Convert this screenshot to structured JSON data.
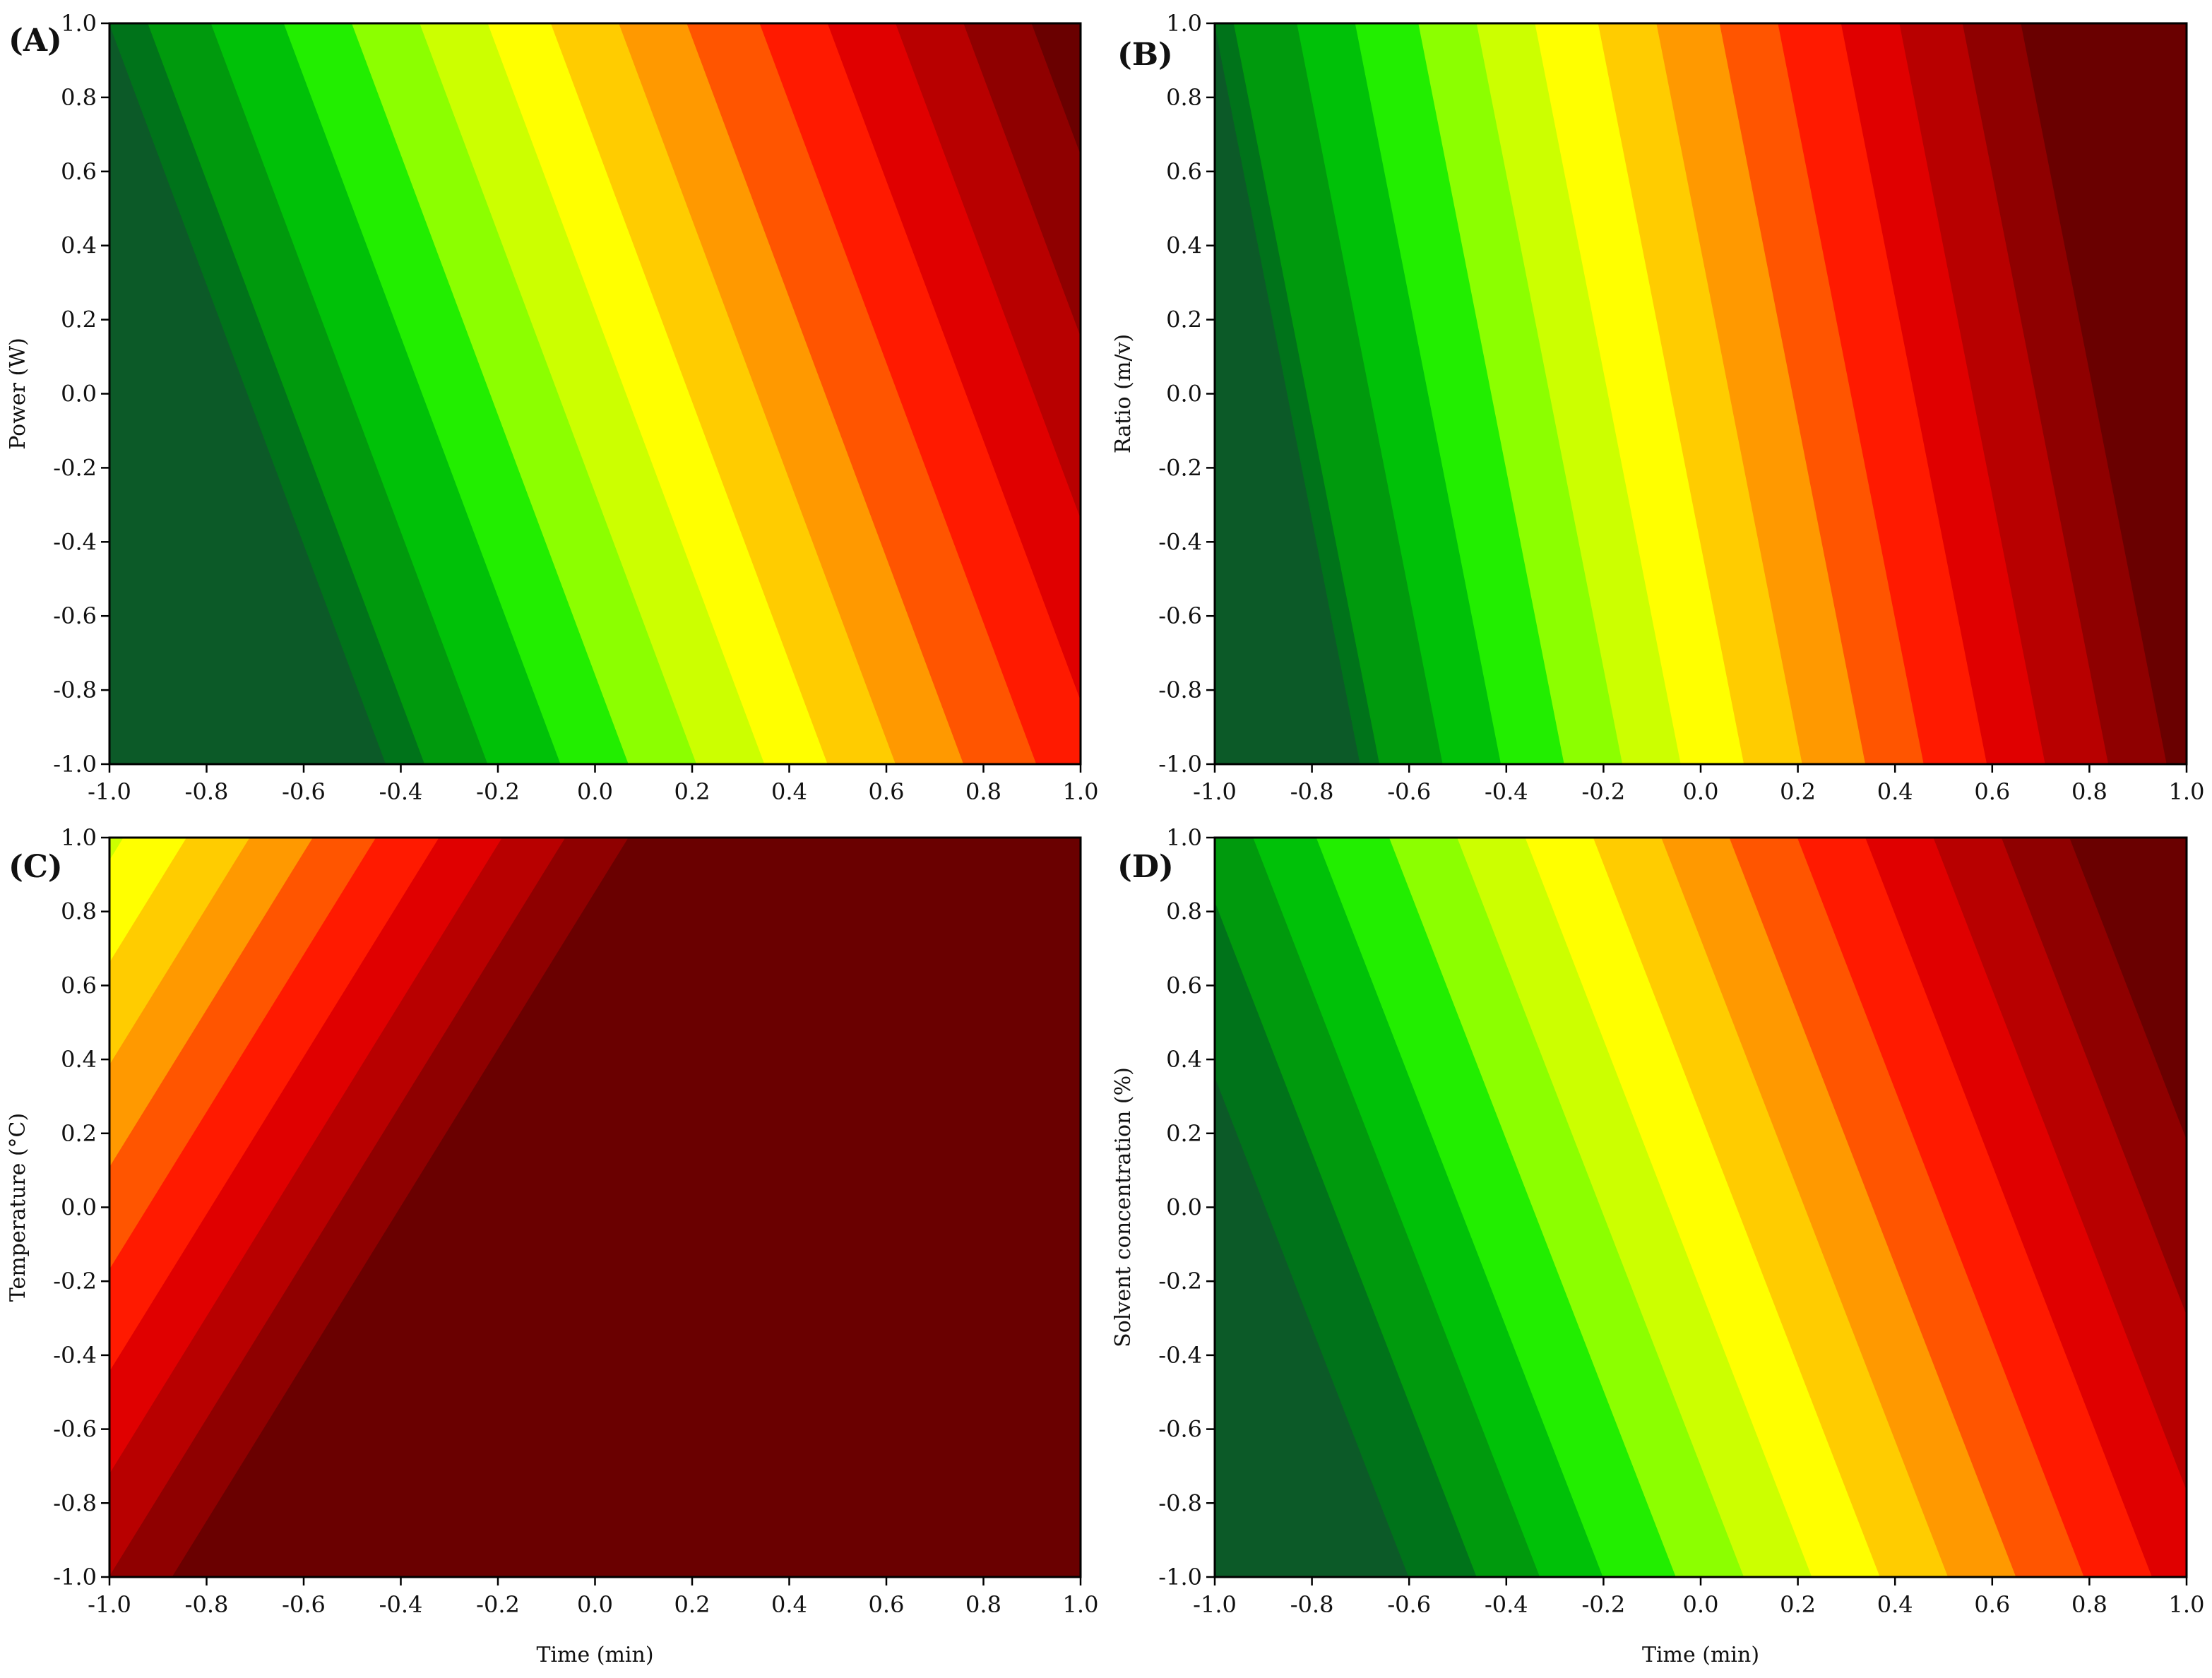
{
  "chart_data": [
    {
      "type": "contour",
      "panel_label": "(A)",
      "xlabel": "",
      "ylabel": "Power (W)",
      "xlim": [
        -1.0,
        1.0
      ],
      "ylim": [
        -1.0,
        1.0
      ],
      "x_ticks": [
        "-1.0",
        "-0.8",
        "-0.6",
        "-0.4",
        "-0.2",
        "0.0",
        "0.2",
        "0.4",
        "0.6",
        "0.8",
        "1.0"
      ],
      "y_ticks": [
        "1.0",
        "0.8",
        "0.6",
        "0.4",
        "0.2",
        "0.0",
        "-0.2",
        "-0.4",
        "-0.6",
        "-0.8",
        "-1.0"
      ],
      "levels": 15,
      "contour_boundaries_at_top": [
        -1.0,
        -0.92,
        -0.79,
        -0.64,
        -0.5,
        -0.36,
        -0.22,
        -0.09,
        0.05,
        0.19,
        0.34,
        0.48,
        0.62,
        0.76,
        0.9
      ],
      "x_shift_bottom_minus_top": 0.57,
      "grid": false,
      "legend": "none"
    },
    {
      "type": "contour",
      "panel_label": "(B)",
      "xlabel": "",
      "ylabel": "Ratio (m/v)",
      "xlim": [
        -1.0,
        1.0
      ],
      "ylim": [
        -1.0,
        1.0
      ],
      "x_ticks": [
        "-1.0",
        "-0.8",
        "-0.6",
        "-0.4",
        "-0.2",
        "0.0",
        "0.2",
        "0.4",
        "0.6",
        "0.8",
        "1.0"
      ],
      "y_ticks": [
        "1.0",
        "0.8",
        "0.6",
        "0.4",
        "0.2",
        "0.0",
        "-0.2",
        "-0.4",
        "-0.6",
        "-0.8",
        "-1.0"
      ],
      "levels": 15,
      "contour_boundaries_at_top": [
        -1.0,
        -0.96,
        -0.83,
        -0.71,
        -0.58,
        -0.46,
        -0.34,
        -0.21,
        -0.09,
        0.04,
        0.16,
        0.29,
        0.41,
        0.54,
        0.66
      ],
      "x_shift_bottom_minus_top": 0.3,
      "grid": false,
      "legend": "none"
    },
    {
      "type": "contour",
      "panel_label": "(C)",
      "xlabel": "Time (min)",
      "ylabel": "Temperature (°C)",
      "xlim": [
        -1.0,
        1.0
      ],
      "ylim": [
        -1.0,
        1.0
      ],
      "x_ticks": [
        "-1.0",
        "-0.8",
        "-0.6",
        "-0.4",
        "-0.2",
        "0.0",
        "0.2",
        "0.4",
        "0.6",
        "0.8",
        "1.0"
      ],
      "y_ticks": [
        "1.0",
        "0.8",
        "0.6",
        "0.4",
        "0.2",
        "0.0",
        "-0.2",
        "-0.4",
        "-0.6",
        "-0.8",
        "-1.0"
      ],
      "levels": 15,
      "contour_boundaries_at_top": [
        -1.74,
        -1.61,
        -1.48,
        -1.35,
        -1.23,
        -1.1,
        -0.97,
        -0.84,
        -0.71,
        -0.58,
        -0.45,
        -0.32,
        -0.19,
        -0.06,
        0.07
      ],
      "x_shift_bottom_minus_top": -0.94,
      "grid": false,
      "legend": "none"
    },
    {
      "type": "contour",
      "panel_label": "(D)",
      "xlabel": "Time (min)",
      "ylabel": "Solvent concentration (%)",
      "xlim": [
        -1.0,
        1.0
      ],
      "ylim": [
        -1.0,
        1.0
      ],
      "x_ticks": [
        "-1.0",
        "-0.8",
        "-0.6",
        "-0.4",
        "-0.2",
        "0.0",
        "0.2",
        "0.4",
        "0.6",
        "0.8",
        "1.0"
      ],
      "y_ticks": [
        "1.0",
        "0.8",
        "0.6",
        "0.4",
        "0.2",
        "0.0",
        "-0.2",
        "-0.4",
        "-0.6",
        "-0.8",
        "-1.0"
      ],
      "levels": 15,
      "contour_boundaries_at_top": [
        -1.19,
        -1.05,
        -0.92,
        -0.79,
        -0.64,
        -0.5,
        -0.36,
        -0.22,
        -0.08,
        0.06,
        0.2,
        0.34,
        0.48,
        0.62,
        0.76
      ],
      "x_shift_bottom_minus_top": 0.59,
      "grid": false,
      "legend": "none"
    }
  ],
  "colormap": [
    "#0c5a28",
    "#00731a",
    "#009a0d",
    "#00c108",
    "#22ee00",
    "#8cff00",
    "#ccff00",
    "#ffff00",
    "#ffcc00",
    "#ff9900",
    "#ff5500",
    "#ff1a00",
    "#e00000",
    "#b80000",
    "#8f0000",
    "#6a0000"
  ]
}
